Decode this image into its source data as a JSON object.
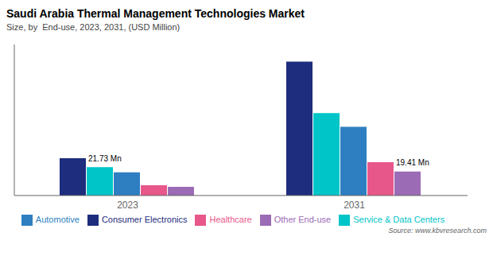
{
  "chart_data": {
    "type": "bar",
    "title": "Saudi Arabia Thermal Management Technologies Market",
    "subtitle": "Size, by  End-use, 2023, 2031, (USD Million)",
    "source": "Source: www.kbvresearch.com",
    "categories": [
      "2023",
      "2031"
    ],
    "series": [
      {
        "name": "Consumer Electronics",
        "color": "#1e2d7d",
        "values": [
          21.73,
          78.0
        ]
      },
      {
        "name": "Service & Data Centers",
        "color": "#00c5c8",
        "values": [
          16.5,
          48.0
        ]
      },
      {
        "name": "Automotive",
        "color": "#2e7fc1",
        "values": [
          13.5,
          40.0
        ]
      },
      {
        "name": "Healthcare",
        "color": "#e8578a",
        "values": [
          6.0,
          19.41
        ]
      },
      {
        "name": "Other End-use",
        "color": "#9b6bb5",
        "values": [
          5.0,
          14.0
        ]
      }
    ],
    "annotations": [
      {
        "text": "21.73 Mn",
        "category": "2023",
        "series": "Consumer Electronics"
      },
      {
        "text": "19.41 Mn",
        "category": "2031",
        "series": "Healthcare"
      }
    ],
    "ylim": [
      0,
      88
    ],
    "grid": false,
    "legend": "bottom",
    "tick_labels": "x"
  }
}
